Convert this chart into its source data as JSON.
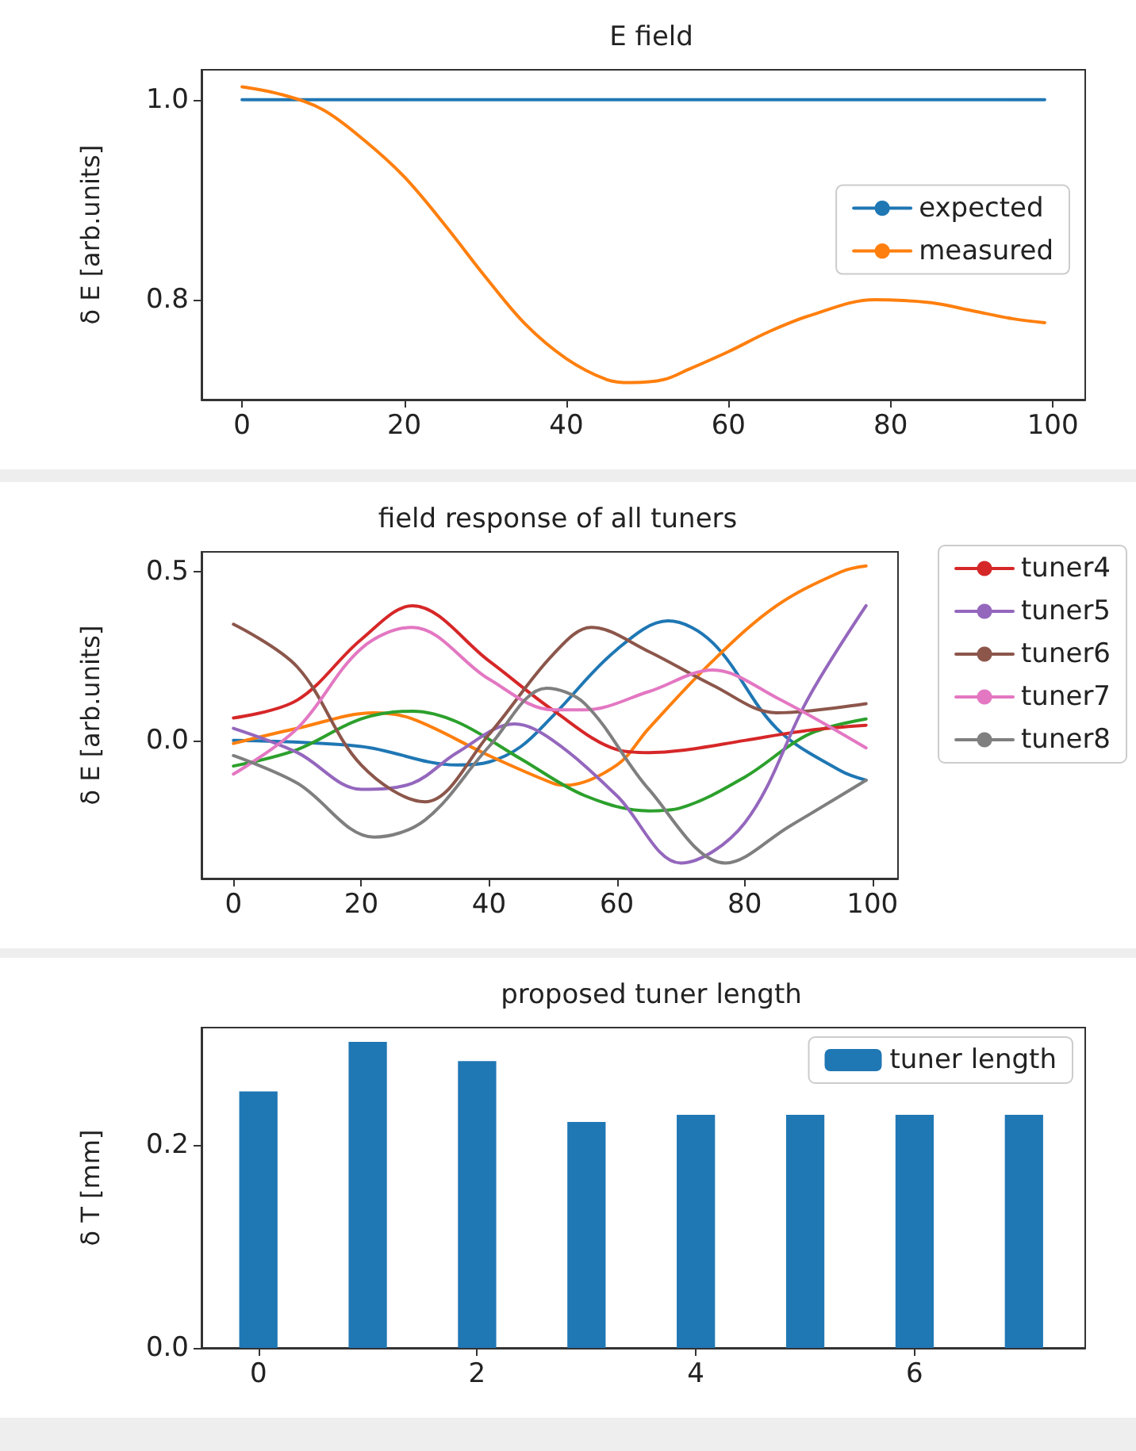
{
  "chart_data": [
    {
      "type": "line",
      "title": "E field",
      "ylabel": "δ E [arb.units]",
      "xlim": [
        -5,
        104
      ],
      "ylim": [
        0.7,
        1.03
      ],
      "xticks": [
        0,
        20,
        40,
        60,
        80,
        100
      ],
      "yticks": [
        {
          "value": 0.8,
          "label": "0.8"
        },
        {
          "value": 1,
          "label": "1.0"
        }
      ],
      "legend": "center right",
      "series": [
        {
          "name": "expected",
          "color": "#1f77b4",
          "x": [
            0,
            99
          ],
          "values": [
            1,
            1
          ]
        },
        {
          "name": "measured",
          "color": "#ff7f0e",
          "x": [
            0,
            5,
            10,
            15,
            20,
            25,
            30,
            35,
            40,
            45,
            48,
            52,
            55,
            60,
            65,
            70,
            78,
            85,
            90,
            95,
            99
          ],
          "values": [
            1.013,
            1.005,
            0.99,
            0.96,
            0.923,
            0.875,
            0.823,
            0.775,
            0.741,
            0.72,
            0.717,
            0.72,
            0.73,
            0.748,
            0.768,
            0.784,
            0.8,
            0.797,
            0.789,
            0.781,
            0.777
          ]
        }
      ]
    },
    {
      "type": "line",
      "title": "field response of all tuners",
      "ylabel": "δ E [arb.units]",
      "xlim": [
        -5,
        104
      ],
      "ylim": [
        -0.41,
        0.56
      ],
      "xticks": [
        0,
        20,
        40,
        60,
        80,
        100
      ],
      "yticks": [
        {
          "value": 0,
          "label": "0.0"
        },
        {
          "value": 0.5,
          "label": "0.5"
        }
      ],
      "legend": "right",
      "series": [
        {
          "color": "#1f77b4",
          "x": [
            0,
            20,
            35,
            40,
            45,
            50,
            60,
            68,
            75,
            85,
            95,
            99
          ],
          "values": [
            0,
            -0.018,
            -0.073,
            -0.064,
            -0.018,
            0.073,
            0.27,
            0.355,
            0.29,
            0.036,
            -0.09,
            -0.118
          ]
        },
        {
          "color": "#ff7f0e",
          "x": [
            0,
            10,
            22,
            28,
            40,
            50,
            52,
            60,
            65,
            75,
            85,
            95,
            99
          ],
          "values": [
            -0.009,
            0.036,
            0.082,
            0.064,
            -0.045,
            -0.127,
            -0.133,
            -0.073,
            0.036,
            0.236,
            0.4,
            0.5,
            0.518
          ]
        },
        {
          "color": "#2ca02c",
          "x": [
            0,
            10,
            20,
            28,
            35,
            45,
            55,
            65,
            70,
            80,
            90,
            99
          ],
          "values": [
            -0.076,
            -0.027,
            0.064,
            0.087,
            0.055,
            -0.055,
            -0.164,
            -0.209,
            -0.2,
            -0.109,
            0.018,
            0.064
          ]
        },
        {
          "name": "tuner4",
          "color": "#d62728",
          "x": [
            0,
            10,
            20,
            28,
            40,
            50,
            60,
            65,
            70,
            80,
            90,
            99
          ],
          "values": [
            0.067,
            0.12,
            0.3,
            0.4,
            0.236,
            0.09,
            -0.027,
            -0.036,
            -0.03,
            0,
            0.03,
            0.045
          ]
        },
        {
          "name": "tuner5",
          "color": "#9467bd",
          "x": [
            0,
            10,
            20,
            28,
            35,
            44,
            50,
            60,
            70,
            80,
            90,
            99
          ],
          "values": [
            0.036,
            -0.036,
            -0.145,
            -0.127,
            -0.036,
            0.049,
            0,
            -0.164,
            -0.364,
            -0.245,
            0.127,
            0.4
          ]
        },
        {
          "name": "tuner6",
          "color": "#8c564b",
          "x": [
            0,
            10,
            20,
            30,
            40,
            50,
            56,
            65,
            75,
            85,
            99
          ],
          "values": [
            0.345,
            0.218,
            -0.073,
            -0.182,
            0.018,
            0.255,
            0.336,
            0.264,
            0.164,
            0.082,
            0.109
          ]
        },
        {
          "name": "tuner7",
          "color": "#e377c2",
          "x": [
            0,
            10,
            20,
            28,
            40,
            50,
            55,
            65,
            75,
            85,
            99
          ],
          "values": [
            -0.1,
            0.036,
            0.273,
            0.336,
            0.182,
            0.091,
            0.091,
            0.145,
            0.209,
            0.127,
            -0.022
          ]
        },
        {
          "name": "tuner8",
          "color": "#7f7f7f",
          "x": [
            0,
            10,
            22,
            30,
            40,
            49,
            55,
            65,
            77,
            87,
            99
          ],
          "values": [
            -0.045,
            -0.127,
            -0.287,
            -0.236,
            -0.018,
            0.155,
            0.109,
            -0.145,
            -0.364,
            -0.255,
            -0.118
          ]
        }
      ]
    },
    {
      "type": "bar",
      "title": "proposed tuner length",
      "ylabel": "δ T [mm]",
      "xlim": [
        -0.52,
        7.56
      ],
      "ylim": [
        0,
        0.316
      ],
      "xticks": [
        0,
        2,
        4,
        6
      ],
      "yticks": [
        {
          "value": 0,
          "label": "0.0"
        },
        {
          "value": 0.2,
          "label": "0.2"
        }
      ],
      "legend": "top right",
      "x": [
        0,
        1,
        2,
        3,
        4,
        5,
        6,
        7
      ],
      "series": [
        {
          "name": "tuner length",
          "color": "#1f77b4",
          "values": [
            0.253,
            0.302,
            0.283,
            0.223,
            0.23,
            0.23,
            0.23,
            0.23
          ]
        }
      ]
    }
  ]
}
